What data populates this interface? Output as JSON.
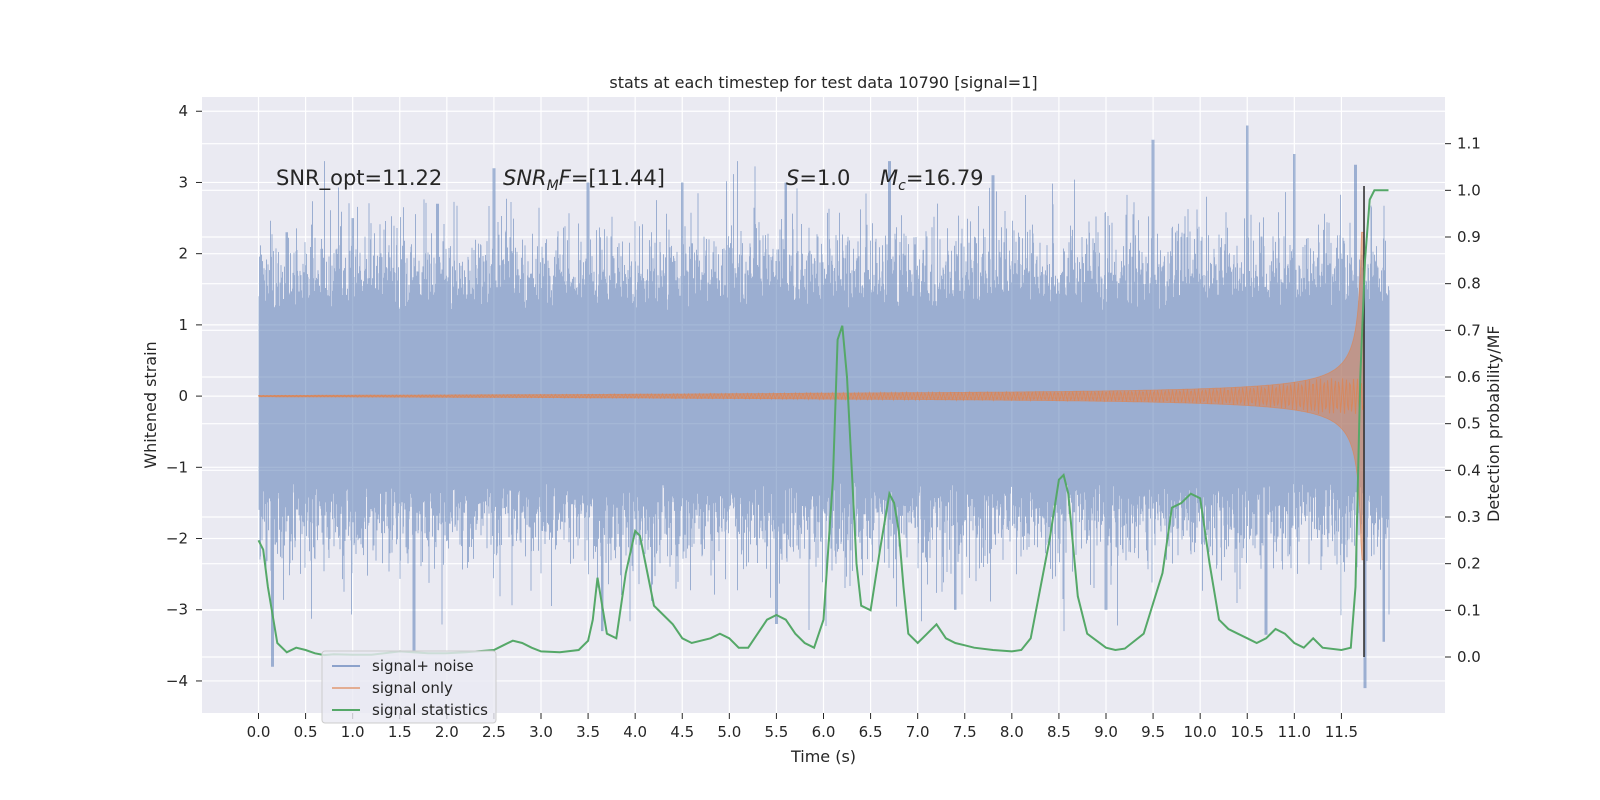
{
  "chart_data": {
    "type": "line",
    "title": "stats at each timestep for test data 10790 [signal=1]",
    "xlabel": "Time (s)",
    "ylabel": "Whitened strain",
    "y2label": "Detection probability/MF",
    "xlim": [
      -0.6,
      12.6
    ],
    "ylim": [
      -4.45,
      4.2
    ],
    "y2lim": [
      -0.12,
      1.2
    ],
    "grid": true,
    "legend_position": "lower-left",
    "x_ticks": [
      "0.0",
      "0.5",
      "1.0",
      "1.5",
      "2.0",
      "2.5",
      "3.0",
      "3.5",
      "4.0",
      "4.5",
      "5.0",
      "5.5",
      "6.0",
      "6.5",
      "7.0",
      "7.5",
      "8.0",
      "8.5",
      "9.0",
      "9.5",
      "10.0",
      "10.5",
      "11.0",
      "11.5"
    ],
    "y_ticks": [
      4,
      3,
      2,
      1,
      0,
      -1,
      -2,
      -3,
      -4
    ],
    "y_tick_labels": [
      "4",
      "3",
      "2",
      "1",
      "0",
      "−1",
      "−2",
      "−3",
      "−4"
    ],
    "y2_ticks": [
      "0.0",
      "0.1",
      "0.2",
      "0.3",
      "0.4",
      "0.5",
      "0.6",
      "0.7",
      "0.8",
      "0.9",
      "1.0",
      "1.1"
    ],
    "annotations": {
      "snr_opt": "SNR_opt=11.22",
      "snr_mf_name": "SNR",
      "snr_mf_sub": "M",
      "snr_mf_f": "F",
      "snr_mf_value": "=[11.44]",
      "s_name": "S",
      "s_value": "=1.0",
      "mc_name": "M",
      "mc_sub": "c",
      "mc_value": "=16.79"
    },
    "series": [
      {
        "name": "signal+ noise",
        "color": "#4c72b0",
        "opacity": 0.5,
        "kind": "noise_envelope",
        "t_range": [
          0.0,
          12.0
        ],
        "envelope_sigma": 1.0,
        "peaks_up": [
          [
            0.3,
            2.3
          ],
          [
            1.0,
            2.5
          ],
          [
            1.9,
            2.7
          ],
          [
            2.5,
            3.2
          ],
          [
            3.5,
            3.0
          ],
          [
            4.5,
            3.0
          ],
          [
            5.6,
            3.0
          ],
          [
            6.7,
            3.3
          ],
          [
            7.8,
            3.1
          ],
          [
            9.5,
            3.6
          ],
          [
            10.5,
            3.8
          ],
          [
            11.0,
            3.4
          ],
          [
            11.65,
            3.25
          ]
        ],
        "peaks_down": [
          [
            0.15,
            -3.8
          ],
          [
            1.65,
            -3.6
          ],
          [
            3.65,
            -3.3
          ],
          [
            5.5,
            -3.2
          ],
          [
            7.4,
            -3.0
          ],
          [
            9.0,
            -3.0
          ],
          [
            10.7,
            -3.35
          ],
          [
            11.75,
            -4.1
          ],
          [
            11.95,
            -3.45
          ]
        ]
      },
      {
        "name": "signal only",
        "color": "#dd8452",
        "kind": "chirp",
        "t_range": [
          0.0,
          11.74
        ],
        "merger_time": 11.74,
        "peak_amplitude": 2.3
      },
      {
        "name": "signal statistics",
        "color": "#55a868",
        "kind": "probability",
        "axis": "y2",
        "t": [
          0.0,
          0.05,
          0.1,
          0.2,
          0.3,
          0.4,
          0.5,
          0.6,
          0.7,
          0.8,
          1.0,
          1.2,
          1.5,
          1.8,
          2.0,
          2.2,
          2.5,
          2.6,
          2.7,
          2.8,
          2.9,
          3.0,
          3.2,
          3.4,
          3.5,
          3.55,
          3.6,
          3.65,
          3.7,
          3.8,
          3.9,
          4.0,
          4.05,
          4.1,
          4.2,
          4.3,
          4.4,
          4.5,
          4.6,
          4.8,
          4.9,
          5.0,
          5.1,
          5.2,
          5.4,
          5.5,
          5.6,
          5.7,
          5.8,
          5.9,
          6.0,
          6.1,
          6.15,
          6.2,
          6.25,
          6.3,
          6.35,
          6.4,
          6.5,
          6.6,
          6.7,
          6.75,
          6.8,
          6.85,
          6.9,
          7.0,
          7.1,
          7.2,
          7.3,
          7.4,
          7.5,
          7.6,
          7.8,
          8.0,
          8.1,
          8.2,
          8.4,
          8.5,
          8.55,
          8.6,
          8.65,
          8.7,
          8.8,
          9.0,
          9.1,
          9.2,
          9.4,
          9.6,
          9.7,
          9.8,
          9.9,
          10.0,
          10.05,
          10.1,
          10.2,
          10.3,
          10.4,
          10.5,
          10.6,
          10.7,
          10.8,
          10.9,
          11.0,
          11.1,
          11.2,
          11.3,
          11.5,
          11.6,
          11.65,
          11.7,
          11.75,
          11.8,
          11.85,
          11.9,
          11.95,
          12.0
        ],
        "values": [
          0.25,
          0.23,
          0.15,
          0.03,
          0.01,
          0.02,
          0.015,
          0.008,
          0.004,
          0.006,
          0.005,
          0.005,
          0.012,
          0.008,
          0.008,
          0.01,
          0.015,
          0.025,
          0.035,
          0.03,
          0.02,
          0.012,
          0.01,
          0.015,
          0.035,
          0.08,
          0.17,
          0.11,
          0.05,
          0.04,
          0.18,
          0.27,
          0.26,
          0.21,
          0.11,
          0.09,
          0.07,
          0.04,
          0.03,
          0.04,
          0.05,
          0.04,
          0.02,
          0.02,
          0.08,
          0.09,
          0.08,
          0.05,
          0.03,
          0.02,
          0.08,
          0.38,
          0.68,
          0.71,
          0.6,
          0.4,
          0.2,
          0.11,
          0.1,
          0.23,
          0.35,
          0.33,
          0.27,
          0.15,
          0.05,
          0.03,
          0.05,
          0.07,
          0.04,
          0.03,
          0.025,
          0.02,
          0.015,
          0.012,
          0.015,
          0.04,
          0.25,
          0.38,
          0.39,
          0.35,
          0.24,
          0.13,
          0.05,
          0.02,
          0.015,
          0.018,
          0.05,
          0.18,
          0.32,
          0.33,
          0.35,
          0.34,
          0.27,
          0.2,
          0.08,
          0.06,
          0.05,
          0.04,
          0.03,
          0.04,
          0.06,
          0.05,
          0.03,
          0.02,
          0.04,
          0.02,
          0.015,
          0.02,
          0.15,
          0.6,
          0.85,
          0.98,
          1.0,
          1.0,
          1.0,
          1.0
        ]
      }
    ]
  }
}
